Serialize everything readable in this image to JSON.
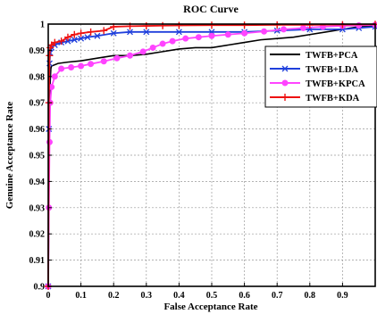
{
  "chart_data": {
    "type": "line",
    "title": "ROC Curve",
    "xlabel": "False Acceptance Rate",
    "ylabel": "Genuine Acceptance  Rate",
    "xlim": [
      0,
      1
    ],
    "ylim": [
      0.9,
      1
    ],
    "grid": true,
    "legend_position": "top-right",
    "x_ticks": [
      0,
      0.1,
      0.2,
      0.3,
      0.4,
      0.5,
      0.6,
      0.7,
      0.8,
      0.9
    ],
    "x_tick_labels": [
      "0",
      "0.1",
      "0.2",
      "0.3",
      "0.4",
      "0.5",
      "0.6",
      "0.7",
      "0.8",
      "0.9"
    ],
    "y_ticks": [
      0.9,
      0.91,
      0.92,
      0.93,
      0.94,
      0.95,
      0.96,
      0.97,
      0.98,
      0.99,
      1
    ],
    "y_tick_labels": [
      "0.9",
      "0.91",
      "0.92",
      "0.93",
      "0.94",
      "0.95",
      "0.96",
      "0.97",
      "0.98",
      "0.99",
      "1"
    ],
    "series": [
      {
        "name": "TWFB+PCA",
        "color": "#000000",
        "marker": "none",
        "x": [
          0,
          0.002,
          0.004,
          0.006,
          0.008,
          0.01,
          0.03,
          0.06,
          0.1,
          0.15,
          0.2,
          0.25,
          0.3,
          0.35,
          0.4,
          0.45,
          0.5,
          0.55,
          0.6,
          0.65,
          0.7,
          0.75,
          0.8,
          0.85,
          0.9,
          0.95,
          1.0
        ],
        "y": [
          0.9,
          0.94,
          0.965,
          0.978,
          0.983,
          0.984,
          0.985,
          0.9855,
          0.986,
          0.987,
          0.988,
          0.988,
          0.9885,
          0.9895,
          0.9905,
          0.991,
          0.991,
          0.992,
          0.993,
          0.994,
          0.9945,
          0.995,
          0.996,
          0.997,
          0.998,
          0.999,
          0.9995
        ]
      },
      {
        "name": "TWFB+LDA",
        "color": "#1f3fdc",
        "marker": "x",
        "x": [
          0,
          0.002,
          0.004,
          0.006,
          0.01,
          0.02,
          0.04,
          0.06,
          0.08,
          0.1,
          0.12,
          0.15,
          0.2,
          0.25,
          0.3,
          0.4,
          0.5,
          0.6,
          0.7,
          0.8,
          0.9,
          0.95,
          1.0
        ],
        "y": [
          0.9,
          0.96,
          0.985,
          0.989,
          0.991,
          0.992,
          0.993,
          0.9935,
          0.994,
          0.9945,
          0.995,
          0.9955,
          0.9965,
          0.997,
          0.997,
          0.997,
          0.997,
          0.997,
          0.9975,
          0.998,
          0.998,
          0.9985,
          0.999
        ]
      },
      {
        "name": "TWFB+KPCA",
        "color": "#ff44ff",
        "marker": "circle",
        "x": [
          0,
          0.002,
          0.004,
          0.006,
          0.01,
          0.02,
          0.04,
          0.07,
          0.1,
          0.13,
          0.17,
          0.21,
          0.25,
          0.29,
          0.32,
          0.35,
          0.38,
          0.42,
          0.46,
          0.5,
          0.55,
          0.6,
          0.66,
          0.72,
          0.78,
          0.84,
          0.9,
          0.95,
          1.0
        ],
        "y": [
          0.9,
          0.93,
          0.955,
          0.97,
          0.976,
          0.98,
          0.983,
          0.9835,
          0.984,
          0.9848,
          0.9858,
          0.987,
          0.988,
          0.9895,
          0.991,
          0.9925,
          0.9935,
          0.9945,
          0.995,
          0.9955,
          0.996,
          0.9965,
          0.9972,
          0.998,
          0.9985,
          0.999,
          0.9993,
          0.9995,
          0.9997
        ]
      },
      {
        "name": "TWFB+KDA",
        "color": "#ee1111",
        "marker": "plus",
        "x": [
          0,
          0.002,
          0.004,
          0.006,
          0.01,
          0.02,
          0.04,
          0.06,
          0.08,
          0.1,
          0.13,
          0.17,
          0.2,
          0.25,
          0.3,
          0.35,
          0.4,
          0.5,
          0.6,
          0.7,
          0.8,
          0.9,
          1.0
        ],
        "y": [
          0.9,
          0.97,
          0.988,
          0.991,
          0.992,
          0.993,
          0.9935,
          0.995,
          0.996,
          0.9965,
          0.997,
          0.9975,
          0.999,
          0.9992,
          0.9993,
          0.9994,
          0.9995,
          0.9996,
          0.9996,
          0.9997,
          0.9997,
          0.9998,
          0.9999
        ]
      }
    ]
  }
}
